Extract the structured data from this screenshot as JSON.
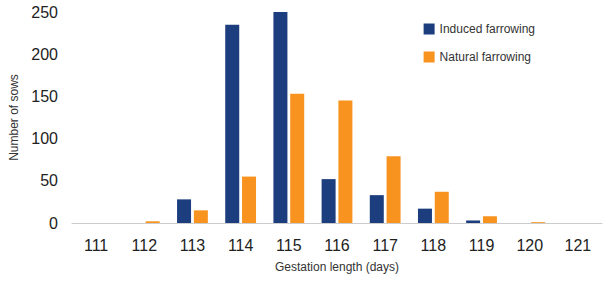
{
  "chart_data": {
    "type": "bar",
    "x_label": "Gestation length (days)",
    "y_label": "Number of sows",
    "categories": [
      "111",
      "112",
      "113",
      "114",
      "115",
      "116",
      "117",
      "118",
      "119",
      "120",
      "121"
    ],
    "series": [
      {
        "name": "Induced farrowing",
        "color": "#1c3d7e",
        "values": [
          0,
          0,
          28,
          235,
          250,
          52,
          33,
          17,
          3,
          0,
          0
        ]
      },
      {
        "name": "Natural farrowing",
        "color": "#f7931e",
        "values": [
          0,
          2,
          15,
          55,
          153,
          145,
          79,
          37,
          8,
          1,
          0
        ]
      }
    ],
    "ylim": [
      0,
      250
    ],
    "yticks": [
      0,
      50,
      100,
      150,
      200,
      250
    ],
    "grid": false,
    "legend": "top-right"
  }
}
